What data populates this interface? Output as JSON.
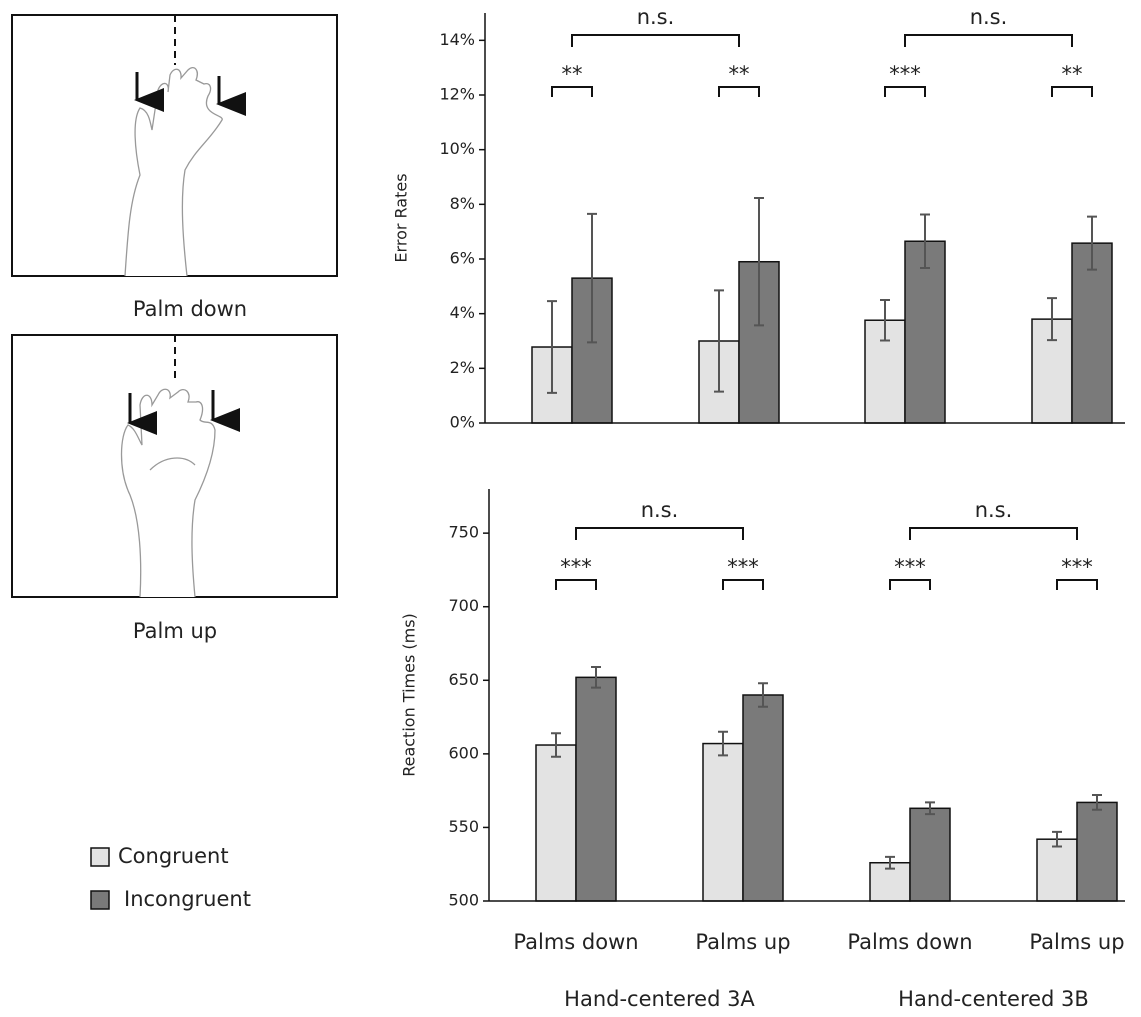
{
  "panels": [
    {
      "caption": "Palm down"
    },
    {
      "caption": "Palm up"
    }
  ],
  "chart_data": [
    {
      "type": "bar",
      "y_label": "Error Rates",
      "ylim": [
        0,
        15
      ],
      "yticks": [
        {
          "value": 0,
          "label": "0%"
        },
        {
          "value": 2,
          "label": "2%"
        },
        {
          "value": 4,
          "label": "4%"
        },
        {
          "value": 6,
          "label": "6%"
        },
        {
          "value": 8,
          "label": "8%"
        },
        {
          "value": 10,
          "label": "10%"
        },
        {
          "value": 12,
          "label": "12%"
        },
        {
          "value": 14,
          "label": "14%"
        }
      ],
      "series": [
        {
          "color": "#e3e3e3",
          "values": [
            2.78,
            3.0,
            3.76,
            3.8
          ],
          "errors": [
            1.68,
            1.85,
            0.74,
            0.77
          ]
        },
        {
          "color": "#7a7a7a",
          "values": [
            5.3,
            5.9,
            6.65,
            6.58
          ],
          "errors": [
            2.35,
            2.33,
            0.98,
            0.97
          ]
        }
      ],
      "pair_significance": [
        "**",
        "**",
        "***",
        "**"
      ],
      "group_significance": [
        "n.s.",
        "n.s."
      ]
    },
    {
      "type": "bar",
      "y_label": "Reaction Times (ms)",
      "ylim": [
        500,
        780
      ],
      "yticks": [
        500,
        550,
        600,
        650,
        700,
        750
      ],
      "categories": [
        "Palms down",
        "Palms up",
        "Palms down",
        "Palms up"
      ],
      "groups": [
        "Hand-centered 3A",
        "Hand-centered 3B"
      ],
      "series": [
        {
          "name": "Congruent",
          "color": "#e3e3e3",
          "values": [
            606,
            607,
            526,
            542
          ],
          "errors": [
            8,
            8,
            4,
            5
          ]
        },
        {
          "name": "Incongruent",
          "color": "#7a7a7a",
          "values": [
            652,
            640,
            563,
            567
          ],
          "errors": [
            7,
            8,
            4,
            5
          ]
        }
      ],
      "pair_significance": [
        "***",
        "***",
        "***",
        "***"
      ],
      "group_significance": [
        "n.s.",
        "n.s."
      ]
    }
  ]
}
